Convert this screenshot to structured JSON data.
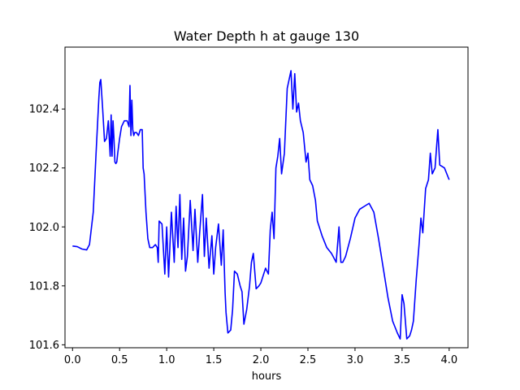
{
  "chart_data": {
    "type": "line",
    "title": "Water Depth h at gauge 130",
    "xlabel": "hours",
    "ylabel": "",
    "xlim": [
      -0.08,
      4.2
    ],
    "ylim": [
      101.59,
      102.61
    ],
    "xticks": [
      0.0,
      0.5,
      1.0,
      1.5,
      2.0,
      2.5,
      3.0,
      3.5,
      4.0
    ],
    "xtick_labels": [
      "0.0",
      "0.5",
      "1.0",
      "1.5",
      "2.0",
      "2.5",
      "3.0",
      "3.5",
      "4.0"
    ],
    "yticks": [
      101.6,
      101.8,
      102.0,
      102.2,
      102.4
    ],
    "ytick_labels": [
      "101.6",
      "101.8",
      "102.0",
      "102.2",
      "102.4"
    ],
    "grid": false,
    "series": [
      {
        "color": "#0000ff",
        "x": [
          0.0,
          0.05,
          0.1,
          0.15,
          0.18,
          0.22,
          0.25,
          0.28,
          0.29,
          0.3,
          0.32,
          0.34,
          0.36,
          0.38,
          0.4,
          0.41,
          0.42,
          0.43,
          0.44,
          0.45,
          0.46,
          0.47,
          0.48,
          0.5,
          0.52,
          0.55,
          0.58,
          0.6,
          0.61,
          0.62,
          0.63,
          0.64,
          0.65,
          0.66,
          0.68,
          0.7,
          0.72,
          0.74,
          0.75,
          0.76,
          0.78,
          0.8,
          0.82,
          0.85,
          0.88,
          0.9,
          0.91,
          0.92,
          0.95,
          0.98,
          1.0,
          1.02,
          1.05,
          1.08,
          1.1,
          1.12,
          1.14,
          1.16,
          1.18,
          1.2,
          1.22,
          1.25,
          1.28,
          1.3,
          1.33,
          1.35,
          1.38,
          1.4,
          1.42,
          1.45,
          1.48,
          1.5,
          1.52,
          1.55,
          1.58,
          1.6,
          1.62,
          1.63,
          1.65,
          1.68,
          1.7,
          1.72,
          1.75,
          1.78,
          1.8,
          1.82,
          1.85,
          1.88,
          1.9,
          1.92,
          1.95,
          1.98,
          2.0,
          2.02,
          2.05,
          2.08,
          2.1,
          2.12,
          2.14,
          2.16,
          2.18,
          2.2,
          2.22,
          2.25,
          2.28,
          2.3,
          2.32,
          2.34,
          2.36,
          2.38,
          2.4,
          2.42,
          2.45,
          2.48,
          2.5,
          2.52,
          2.55,
          2.58,
          2.6,
          2.62,
          2.65,
          2.7,
          2.75,
          2.8,
          2.83,
          2.85,
          2.87,
          2.9,
          2.95,
          3.0,
          3.05,
          3.1,
          3.15,
          3.2,
          3.25,
          3.3,
          3.35,
          3.4,
          3.45,
          3.48,
          3.5,
          3.52,
          3.55,
          3.58,
          3.6,
          3.62,
          3.65,
          3.68,
          3.7,
          3.72,
          3.75,
          3.78,
          3.8,
          3.82,
          3.85,
          3.88,
          3.9,
          3.95,
          4.0
        ],
        "y": [
          101.935,
          101.933,
          101.925,
          101.922,
          101.94,
          102.05,
          102.25,
          102.44,
          102.49,
          102.5,
          102.4,
          102.29,
          102.3,
          102.36,
          102.24,
          102.38,
          102.24,
          102.36,
          102.3,
          102.22,
          102.215,
          102.22,
          102.25,
          102.3,
          102.34,
          102.36,
          102.36,
          102.34,
          102.48,
          102.31,
          102.43,
          102.33,
          102.31,
          102.32,
          102.32,
          102.31,
          102.33,
          102.33,
          102.2,
          102.18,
          102.05,
          101.96,
          101.93,
          101.93,
          101.94,
          101.93,
          101.88,
          102.02,
          102.01,
          101.84,
          102.0,
          101.83,
          102.05,
          101.88,
          102.07,
          101.93,
          102.11,
          101.89,
          102.03,
          101.85,
          101.9,
          102.09,
          101.92,
          102.06,
          101.88,
          101.98,
          102.11,
          101.9,
          102.03,
          101.86,
          101.97,
          101.84,
          101.93,
          102.01,
          101.87,
          101.99,
          101.78,
          101.71,
          101.64,
          101.65,
          101.72,
          101.85,
          101.84,
          101.8,
          101.78,
          101.67,
          101.72,
          101.8,
          101.88,
          101.91,
          101.79,
          101.8,
          101.81,
          101.83,
          101.86,
          101.84,
          101.99,
          102.05,
          101.96,
          102.2,
          102.24,
          102.3,
          102.18,
          102.25,
          102.47,
          102.5,
          102.53,
          102.4,
          102.52,
          102.39,
          102.42,
          102.36,
          102.32,
          102.22,
          102.25,
          102.16,
          102.14,
          102.09,
          102.02,
          102.0,
          101.97,
          101.93,
          101.91,
          101.88,
          102.0,
          101.88,
          101.88,
          101.9,
          101.96,
          102.03,
          102.06,
          102.07,
          102.08,
          102.05,
          101.96,
          101.86,
          101.76,
          101.68,
          101.64,
          101.62,
          101.77,
          101.74,
          101.62,
          101.63,
          101.65,
          101.68,
          101.82,
          101.94,
          102.03,
          101.98,
          102.13,
          102.16,
          102.25,
          102.18,
          102.2,
          102.33,
          102.21,
          102.2,
          102.16
        ]
      }
    ]
  }
}
